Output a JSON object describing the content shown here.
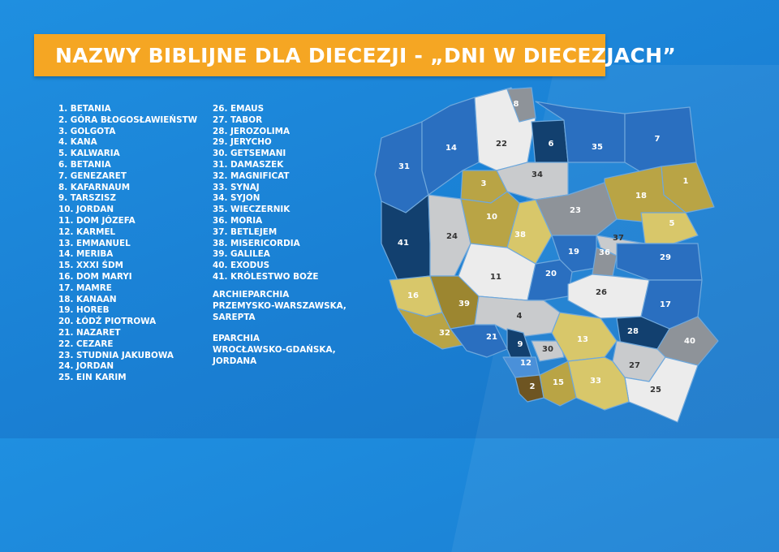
{
  "title": "NAZWY BIBLIJNE DLA DIECEZJI - „DNI W DIECEZJACH”",
  "list_col1": [
    "1. BETANIA",
    "2. GÓRA BŁOGOSŁAWIEŃSTW",
    "3. GOLGOTA",
    "4. KANA",
    "5. KALWARIA",
    "6. BETANIA",
    "7. GENEZARET",
    "8. KAFARNAUM",
    "9. TARSZISZ",
    "10. JORDAN",
    "11. DOM JÓZEFA",
    "12. KARMEL",
    "13. EMMANUEL",
    "14. MERIBA",
    "15. XXXI ŚDM",
    "16. DOM MARYI",
    "17. MAMRE",
    "18. KANAAN",
    "19. HOREB",
    "20. ŁÓDŹ PIOTROWA",
    "21. NAZARET",
    "22. CEZARE",
    "23. STUDNIA JAKUBOWA",
    "24. JORDAN",
    "25. EIN KARIM"
  ],
  "list_col2": [
    "26. EMAUS",
    "27. TABOR",
    "28. JEROZOLIMA",
    "29. JERYCHO",
    "30. GETSEMANI",
    "31. DAMASZEK",
    "32. MAGNIFICAT",
    "33. SYNAJ",
    "34. SYJON",
    "35. WIECZERNIK",
    "36. MORIA",
    "37. BETLEJEM",
    "38. MISERICORDIA",
    "39. GALILEA",
    "40. EXODUS",
    "41. KRÓLESTWO BOŻE"
  ],
  "note_archieparchia": "ARCHIEPARCHIA\nPRZEMYSKO-WARSZAWSKA,\nSAREPTA",
  "note_eparchia": "EPARCHIA\nWROCŁAWSKO-GDAŃSKA,\nJORDANA",
  "map_labels": [
    "1",
    "2",
    "3",
    "4",
    "5",
    "6",
    "7",
    "8",
    "9",
    "10",
    "11",
    "12",
    "13",
    "14",
    "15",
    "16",
    "17",
    "18",
    "19",
    "20",
    "21",
    "22",
    "23",
    "24",
    "25",
    "26",
    "27",
    "28",
    "29",
    "30",
    "31",
    "32",
    "33",
    "34",
    "35",
    "36",
    "37",
    "38",
    "39",
    "40",
    "41"
  ],
  "colors": {
    "navy": "#12406f",
    "blue": "#2a6fc0",
    "light_blue": "#4a90d9",
    "gold": "#b9a445",
    "light_gold": "#d8c76a",
    "dark_gold": "#9c8630",
    "brown": "#6e5522",
    "gray": "#8e9399",
    "light_gray": "#c9cbcd",
    "white": "#ececec"
  }
}
